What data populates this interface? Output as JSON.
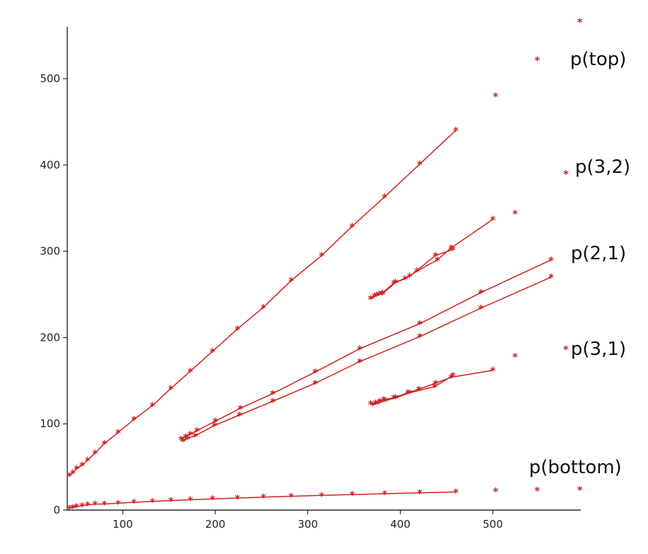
{
  "chart_data": {
    "type": "line",
    "title": "",
    "xlabel": "",
    "ylabel": "",
    "xlim": [
      40,
      595
    ],
    "ylim": [
      0,
      560
    ],
    "xticks": [
      100,
      200,
      300,
      400,
      500
    ],
    "yticks": [
      0,
      100,
      200,
      300,
      400,
      500
    ],
    "grid": false,
    "legend": "none",
    "marker": "*",
    "color": "#cc2222",
    "series": [
      {
        "name": "p(top)",
        "line": {
          "x": [
            42,
            46,
            50,
            56,
            62,
            70,
            80,
            95,
            112,
            132,
            152,
            173,
            197,
            224,
            252,
            282,
            315,
            348,
            383,
            421,
            460
          ],
          "y": [
            40,
            43,
            48,
            52,
            58,
            66,
            77,
            90,
            105,
            121,
            141,
            161,
            184,
            210,
            235,
            266,
            295,
            329,
            363,
            401,
            440
          ]
        },
        "points": {
          "x": [
            503,
            548,
            594
          ],
          "y": [
            480,
            522,
            566
          ]
        }
      },
      {
        "name": "p(3,2)",
        "line": {
          "x": [
            368,
            372,
            377,
            381,
            395,
            405,
            418,
            440,
            455,
            500
          ],
          "y": [
            245,
            248,
            250,
            251,
            264,
            268,
            277,
            290,
            304,
            337
          ]
        },
        "line2": {
          "x": [
            368,
            374,
            380,
            393,
            410,
            438,
            457
          ],
          "y": [
            245,
            249,
            251,
            263,
            271,
            295,
            302
          ]
        },
        "points": {
          "x": [
            524,
            579
          ],
          "y": [
            344,
            390
          ]
        }
      },
      {
        "name": "p(2,1)",
        "line": {
          "x": [
            163,
            168,
            173,
            180,
            200,
            227,
            262,
            308,
            356,
            421,
            487,
            563
          ],
          "y": [
            82,
            85,
            88,
            92,
            103,
            118,
            135,
            160,
            187,
            216,
            252,
            290
          ]
        },
        "line2": {
          "x": [
            165,
            170,
            178,
            199,
            226,
            262,
            308,
            356,
            421,
            487,
            563
          ],
          "y": [
            80,
            83,
            86,
            98,
            110,
            126,
            147,
            172,
            201,
            234,
            270
          ]
        }
      },
      {
        "name": "p(3,1)",
        "line": {
          "x": [
            368,
            373,
            378,
            382,
            393,
            408,
            420,
            438,
            455,
            500
          ],
          "y": [
            123,
            124,
            126,
            128,
            130,
            136,
            140,
            147,
            154,
            162
          ]
        },
        "line2": {
          "x": [
            370,
            376,
            384,
            395,
            410,
            437,
            457
          ],
          "y": [
            122,
            124,
            127,
            130,
            136,
            143,
            156
          ]
        },
        "points": {
          "x": [
            524,
            579
          ],
          "y": [
            178,
            187
          ]
        }
      },
      {
        "name": "p(bottom)",
        "line": {
          "x": [
            42,
            46,
            50,
            56,
            62,
            70,
            80,
            95,
            112,
            132,
            152,
            173,
            197,
            224,
            252,
            282,
            315,
            348,
            383,
            421,
            460
          ],
          "y": [
            2,
            3,
            4,
            5,
            6,
            7,
            7,
            8,
            9,
            10,
            11,
            12,
            13,
            14,
            15,
            16,
            17,
            18,
            19,
            20,
            21
          ]
        },
        "points": {
          "x": [
            503,
            548,
            594
          ],
          "y": [
            22,
            23,
            24
          ]
        }
      }
    ]
  }
}
